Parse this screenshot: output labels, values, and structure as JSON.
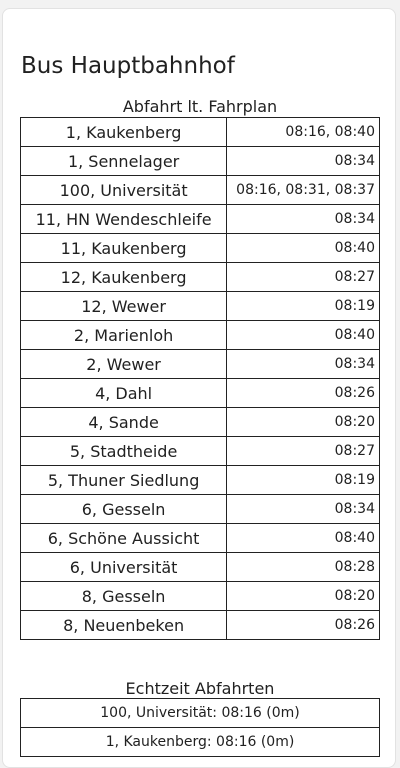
{
  "page_title": "Bus Hauptbahnhof",
  "schedule_caption": "Abfahrt lt. Fahrplan",
  "schedule": [
    {
      "line": "1, Kaukenberg",
      "times": "08:16, 08:40"
    },
    {
      "line": "1, Sennelager",
      "times": "08:34"
    },
    {
      "line": "100, Universität",
      "times": "08:16, 08:31, 08:37"
    },
    {
      "line": "11, HN Wendeschleife",
      "times": "08:34"
    },
    {
      "line": "11, Kaukenberg",
      "times": "08:40"
    },
    {
      "line": "12, Kaukenberg",
      "times": "08:27"
    },
    {
      "line": "12, Wewer",
      "times": "08:19"
    },
    {
      "line": "2, Marienloh",
      "times": "08:40"
    },
    {
      "line": "2, Wewer",
      "times": "08:34"
    },
    {
      "line": "4, Dahl",
      "times": "08:26"
    },
    {
      "line": "4, Sande",
      "times": "08:20"
    },
    {
      "line": "5, Stadtheide",
      "times": "08:27"
    },
    {
      "line": "5, Thuner Siedlung",
      "times": "08:19"
    },
    {
      "line": "6, Gesseln",
      "times": "08:34"
    },
    {
      "line": "6, Schöne Aussicht",
      "times": "08:40"
    },
    {
      "line": "6, Universität",
      "times": "08:28"
    },
    {
      "line": "8, Gesseln",
      "times": "08:20"
    },
    {
      "line": "8, Neuenbeken",
      "times": "08:26"
    }
  ],
  "realtime_caption": "Echtzeit Abfahrten",
  "realtime": [
    "100, Universität: 08:16 (0m)",
    "1, Kaukenberg: 08:16 (0m)"
  ]
}
